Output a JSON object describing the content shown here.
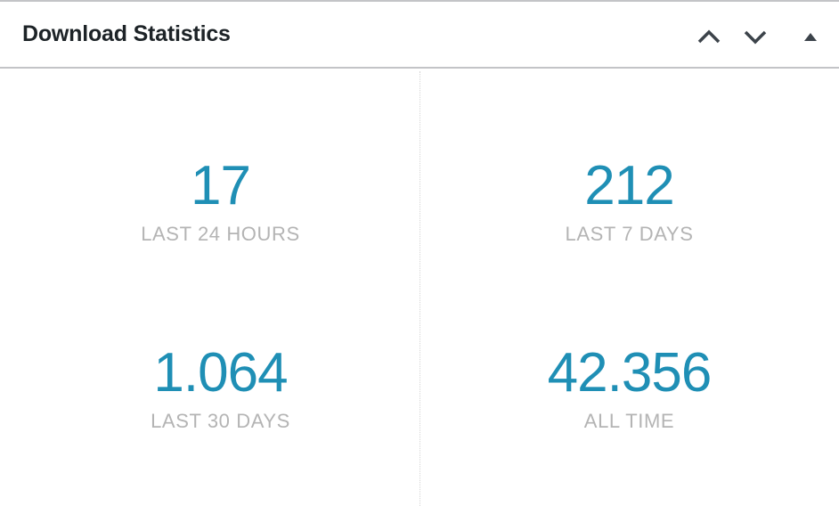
{
  "header": {
    "title": "Download Statistics"
  },
  "stats": [
    {
      "value": "17",
      "label": "LAST 24 HOURS"
    },
    {
      "value": "212",
      "label": "LAST 7 DAYS"
    },
    {
      "value": "1.064",
      "label": "LAST 30 DAYS"
    },
    {
      "value": "42.356",
      "label": "ALL TIME"
    }
  ]
}
